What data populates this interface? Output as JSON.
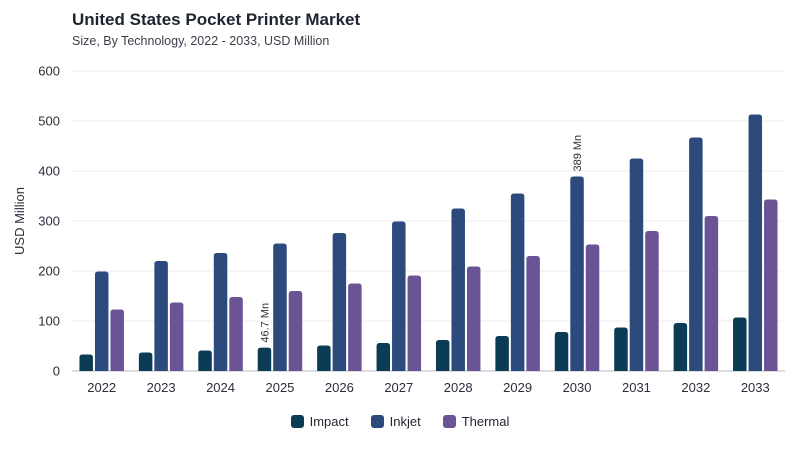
{
  "chart_data": {
    "type": "bar",
    "title": "United States Pocket Printer Market",
    "subtitle": "Size, By Technology, 2022 - 2033, USD Million",
    "xlabel": "",
    "ylabel": "USD Million",
    "ylim": [
      0,
      600
    ],
    "yticks": [
      0,
      100,
      200,
      300,
      400,
      500,
      600
    ],
    "grid": true,
    "legend_position": "bottom",
    "categories": [
      "2022",
      "2023",
      "2024",
      "2025",
      "2026",
      "2027",
      "2028",
      "2029",
      "2030",
      "2031",
      "2032",
      "2033"
    ],
    "series": [
      {
        "name": "Impact",
        "color": "#0c3c55",
        "values": [
          33,
          37,
          41,
          46.7,
          51,
          56,
          62,
          70,
          78,
          87,
          96,
          107
        ]
      },
      {
        "name": "Inkjet",
        "color": "#2c4a7c",
        "values": [
          199,
          220,
          236,
          255,
          276,
          299,
          325,
          355,
          389,
          425,
          467,
          513
        ]
      },
      {
        "name": "Thermal",
        "color": "#6b5496",
        "values": [
          123,
          137,
          148,
          160,
          175,
          191,
          209,
          230,
          253,
          280,
          310,
          343
        ]
      }
    ],
    "annotations": [
      {
        "series": "Impact",
        "category": "2025",
        "text": "46.7 Mn"
      },
      {
        "series": "Inkjet",
        "category": "2030",
        "text": "389 Mn"
      }
    ]
  }
}
